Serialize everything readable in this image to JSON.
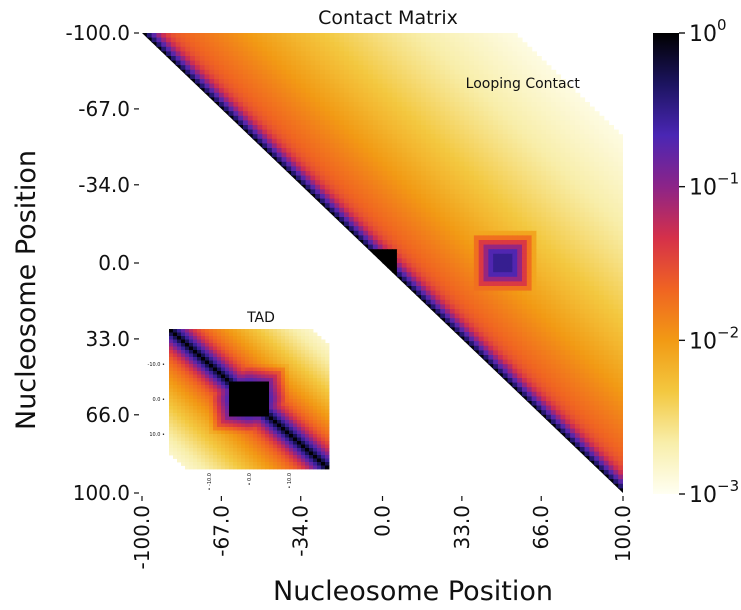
{
  "chart_data": {
    "type": "heatmap",
    "title": "Contact Matrix",
    "xlabel": "Nucleosome Position",
    "ylabel": "Nucleosome Position",
    "x_ticks": [
      "-100.0",
      "-67.0",
      "-34.0",
      "0.0",
      "33.0",
      "66.0",
      "100.0"
    ],
    "y_ticks": [
      "-100.0",
      "-67.0",
      "-34.0",
      "0.0",
      "33.0",
      "66.0",
      "100.0"
    ],
    "x_tick_values": [
      -100,
      -67,
      -34,
      0,
      33,
      66,
      100
    ],
    "y_tick_values": [
      -100,
      -67,
      -34,
      0,
      33,
      66,
      100
    ],
    "xlim": [
      -100,
      100
    ],
    "ylim": [
      -100,
      100
    ],
    "matrix_shape": "upper-triangular",
    "colorscale": "log",
    "colorbar_range": [
      0.001,
      1
    ],
    "colorbar_ticks": [
      {
        "base": "10",
        "exp": "0",
        "value": 1
      },
      {
        "base": "10",
        "exp": "−1",
        "value": 0.1
      },
      {
        "base": "10",
        "exp": "−2",
        "value": 0.01
      },
      {
        "base": "10",
        "exp": "−3",
        "value": 0.001
      }
    ],
    "colormap": [
      "#fffff2",
      "#f8eeaa",
      "#f3c840",
      "#f29a14",
      "#f06422",
      "#d5304a",
      "#8c2488",
      "#4a26b4",
      "#1c1460",
      "#000000"
    ],
    "features": [
      {
        "label": "",
        "kind": "TAD",
        "x": 0,
        "y": 0,
        "contact": 1
      },
      {
        "label": "Looping Contact",
        "kind": "loop",
        "x": 50,
        "y": 0,
        "contact": 0.3
      },
      {
        "label": "",
        "kind": "stripe-dot",
        "x": 50,
        "y": 47,
        "contact": 0.1
      }
    ],
    "inset": {
      "title": "TAD",
      "x_ticks": [
        "-10.0",
        "0.0",
        "10.0"
      ],
      "y_ticks": [
        "-10.0",
        "0.0",
        "10.0"
      ],
      "xlim": [
        -20,
        20
      ],
      "ylim": [
        -20,
        20
      ],
      "tad_half_width": 5
    }
  }
}
